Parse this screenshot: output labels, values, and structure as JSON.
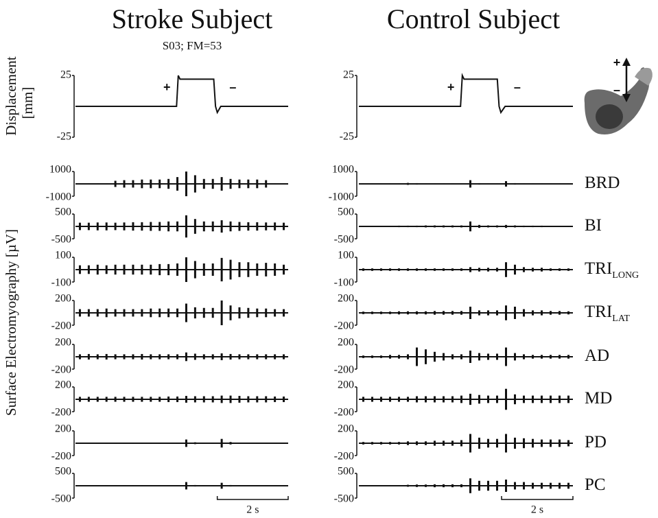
{
  "y_labels": {
    "displacement": [
      "Displacement",
      "[mm]"
    ],
    "emg": "Surface Electromyography [µV]"
  },
  "channels": [
    {
      "name": "BRD"
    },
    {
      "name": "BI"
    },
    {
      "name": "TRI",
      "sub": "LONG"
    },
    {
      "name": "TRI",
      "sub": "LAT"
    },
    {
      "name": "AD"
    },
    {
      "name": "MD"
    },
    {
      "name": "PD"
    },
    {
      "name": "PC"
    }
  ],
  "perturbation_signs": {
    "up": "+",
    "down": "–"
  },
  "chart_data": [
    {
      "type": "line",
      "title": "Stroke Subject",
      "subtitle": "S03; FM=53",
      "xlim": [
        0,
        6
      ],
      "displacement": {
        "x": [
          0,
          2.85,
          2.9,
          2.95,
          3.05,
          3.9,
          3.95,
          4.0,
          4.1,
          6
        ],
        "values": [
          0,
          0,
          25,
          22,
          22,
          22,
          0,
          -5,
          0,
          0
        ],
        "ylim": [
          -25,
          25
        ],
        "yticks": [
          -25,
          25
        ],
        "annotations": [
          "+",
          "–"
        ]
      },
      "emg_x": [
        0.125,
        0.375,
        0.625,
        0.875,
        1.125,
        1.375,
        1.625,
        1.875,
        2.125,
        2.375,
        2.625,
        2.875,
        3.125,
        3.375,
        3.625,
        3.875,
        4.125,
        4.375,
        4.625,
        4.875,
        5.125,
        5.375,
        5.625,
        5.875
      ],
      "emg": [
        {
          "ylim": [
            -1000,
            1000
          ],
          "yticks": [
            -1000,
            1000
          ],
          "values": [
            20,
            20,
            20,
            20,
            250,
            300,
            300,
            350,
            350,
            350,
            400,
            550,
            1000,
            700,
            400,
            400,
            550,
            400,
            350,
            350,
            350,
            300,
            30,
            20
          ]
        },
        {
          "ylim": [
            -500,
            500
          ],
          "yticks": [
            -500,
            500
          ],
          "values": [
            150,
            150,
            160,
            160,
            150,
            160,
            170,
            170,
            180,
            180,
            200,
            200,
            450,
            300,
            200,
            200,
            250,
            200,
            180,
            170,
            170,
            160,
            160,
            150
          ]
        },
        {
          "ylim": [
            -100,
            100
          ],
          "yticks": [
            -100,
            100
          ],
          "values": [
            35,
            35,
            40,
            35,
            40,
            40,
            40,
            40,
            40,
            45,
            45,
            50,
            100,
            70,
            50,
            50,
            95,
            80,
            60,
            60,
            50,
            55,
            50,
            40
          ]
        },
        {
          "ylim": [
            -200,
            200
          ],
          "yticks": [
            -200,
            200
          ],
          "values": [
            60,
            60,
            60,
            70,
            60,
            60,
            60,
            60,
            70,
            70,
            70,
            70,
            150,
            90,
            80,
            80,
            200,
            120,
            90,
            80,
            70,
            70,
            60,
            60
          ]
        },
        {
          "ylim": [
            -200,
            200
          ],
          "yticks": [
            -200,
            200
          ],
          "values": [
            40,
            45,
            40,
            45,
            40,
            40,
            40,
            45,
            40,
            40,
            40,
            40,
            70,
            50,
            40,
            40,
            55,
            45,
            40,
            40,
            40,
            40,
            40,
            40
          ]
        },
        {
          "ylim": [
            -200,
            200
          ],
          "yticks": [
            -200,
            200
          ],
          "values": [
            40,
            40,
            40,
            40,
            40,
            40,
            40,
            40,
            40,
            40,
            45,
            45,
            55,
            50,
            50,
            50,
            60,
            60,
            55,
            50,
            50,
            50,
            45,
            45
          ]
        },
        {
          "ylim": [
            -200,
            200
          ],
          "yticks": [
            -200,
            200
          ],
          "values": [
            10,
            10,
            10,
            10,
            10,
            10,
            10,
            10,
            10,
            10,
            10,
            10,
            60,
            15,
            10,
            10,
            70,
            20,
            10,
            10,
            10,
            10,
            10,
            10
          ]
        },
        {
          "ylim": [
            -500,
            500
          ],
          "yticks": [
            -500,
            500
          ],
          "values": [
            20,
            20,
            20,
            20,
            20,
            20,
            20,
            20,
            20,
            20,
            20,
            20,
            150,
            30,
            20,
            20,
            120,
            30,
            20,
            20,
            20,
            20,
            20,
            20
          ]
        }
      ],
      "scale_bar": {
        "value": 2,
        "label": "2 s"
      }
    },
    {
      "type": "line",
      "title": "Control Subject",
      "xlim": [
        0,
        6
      ],
      "displacement": {
        "x": [
          0,
          2.85,
          2.9,
          2.95,
          3.05,
          3.88,
          3.93,
          3.98,
          4.1,
          6
        ],
        "values": [
          0,
          0,
          25,
          22,
          22,
          22,
          0,
          -5,
          0,
          0
        ],
        "ylim": [
          -25,
          25
        ],
        "yticks": [
          -25,
          25
        ],
        "annotations": [
          "+",
          "–"
        ]
      },
      "emg_x": [
        0.125,
        0.375,
        0.625,
        0.875,
        1.125,
        1.375,
        1.625,
        1.875,
        2.125,
        2.375,
        2.625,
        2.875,
        3.125,
        3.375,
        3.625,
        3.875,
        4.125,
        4.375,
        4.625,
        4.875,
        5.125,
        5.375,
        5.625,
        5.875
      ],
      "emg": [
        {
          "ylim": [
            -1000,
            1000
          ],
          "yticks": [
            -1000,
            1000
          ],
          "values": [
            20,
            20,
            20,
            20,
            30,
            80,
            60,
            40,
            50,
            50,
            40,
            40,
            300,
            60,
            40,
            40,
            220,
            60,
            40,
            40,
            30,
            30,
            20,
            20
          ]
        },
        {
          "ylim": [
            -500,
            500
          ],
          "yticks": [
            -500,
            500
          ],
          "values": [
            20,
            20,
            20,
            20,
            30,
            30,
            30,
            40,
            40,
            40,
            40,
            40,
            200,
            60,
            40,
            40,
            60,
            40,
            30,
            30,
            30,
            20,
            20,
            20
          ]
        },
        {
          "ylim": [
            -100,
            100
          ],
          "yticks": [
            -100,
            100
          ],
          "values": [
            10,
            10,
            10,
            10,
            10,
            10,
            10,
            10,
            10,
            10,
            10,
            10,
            20,
            15,
            15,
            15,
            60,
            40,
            20,
            15,
            15,
            10,
            10,
            10
          ]
        },
        {
          "ylim": [
            -200,
            200
          ],
          "yticks": [
            -200,
            200
          ],
          "values": [
            20,
            20,
            20,
            20,
            25,
            25,
            25,
            25,
            30,
            30,
            30,
            30,
            100,
            40,
            40,
            40,
            120,
            100,
            60,
            40,
            40,
            30,
            30,
            25
          ]
        },
        {
          "ylim": [
            -200,
            200
          ],
          "yticks": [
            -200,
            200
          ],
          "values": [
            20,
            20,
            20,
            30,
            30,
            40,
            150,
            120,
            80,
            60,
            40,
            40,
            100,
            60,
            50,
            50,
            150,
            60,
            40,
            30,
            30,
            30,
            30,
            30
          ]
        },
        {
          "ylim": [
            -200,
            200
          ],
          "yticks": [
            -200,
            200
          ],
          "values": [
            40,
            40,
            40,
            40,
            40,
            40,
            50,
            50,
            50,
            50,
            50,
            60,
            90,
            70,
            60,
            60,
            170,
            80,
            60,
            60,
            60,
            60,
            60,
            60
          ]
        },
        {
          "ylim": [
            -200,
            200
          ],
          "yticks": [
            -200,
            200
          ],
          "values": [
            20,
            20,
            20,
            20,
            20,
            30,
            30,
            30,
            40,
            40,
            40,
            50,
            150,
            90,
            70,
            70,
            150,
            90,
            80,
            70,
            60,
            60,
            60,
            50
          ]
        },
        {
          "ylim": [
            -500,
            500
          ],
          "yticks": [
            -500,
            500
          ],
          "values": [
            20,
            20,
            20,
            20,
            20,
            40,
            50,
            50,
            60,
            60,
            60,
            60,
            300,
            200,
            200,
            200,
            250,
            150,
            150,
            120,
            120,
            120,
            120,
            120
          ]
        }
      ],
      "scale_bar": {
        "value": 2,
        "label": "2 s"
      }
    }
  ]
}
